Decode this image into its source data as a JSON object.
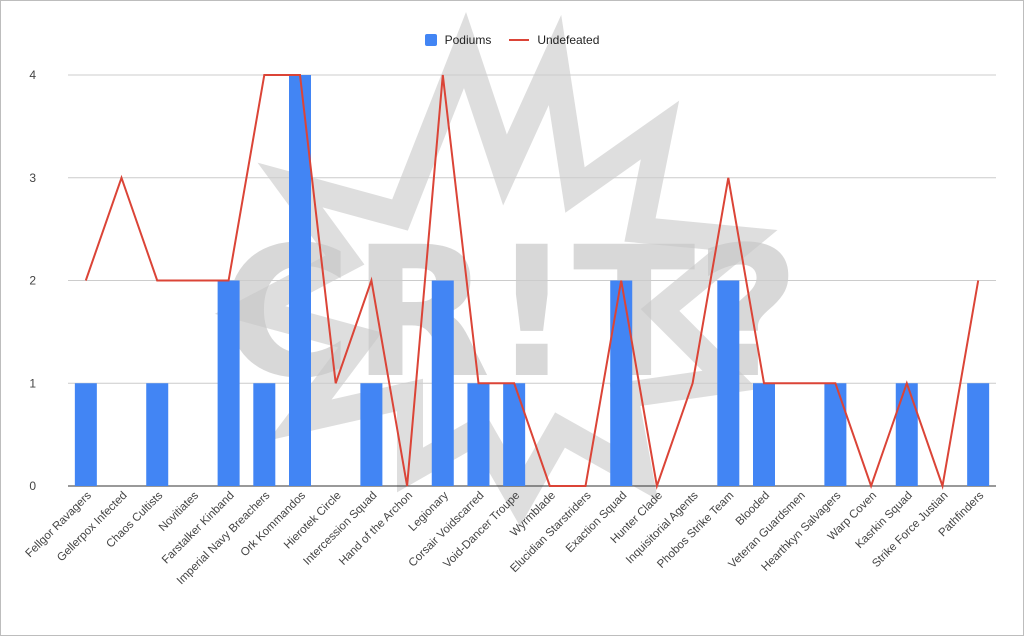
{
  "watermark_text": "CR!T?",
  "chart_data": {
    "type": "bar",
    "title": "",
    "xlabel": "",
    "ylabel": "",
    "ylim": [
      0,
      4
    ],
    "yticks": [
      "0",
      "1",
      "2",
      "3",
      "4"
    ],
    "grid": true,
    "legend_position": "top-center",
    "categories": [
      "Fellgor Ravagers",
      "Gellerpox Infected",
      "Chaos Cultists",
      "Novitiates",
      "Farstalker Kinband",
      "Imperial Navy Breachers",
      "Ork Kommandos",
      "Hierotek Circle",
      "Intercession Squad",
      "Hand of the Archon",
      "Legionary",
      "Corsair Voidscarred",
      "Void-Dancer Troupe",
      "Wyrmblade",
      "Elucidian Starstriders",
      "Exaction Squad",
      "Hunter Clade",
      "Inquisitorial Agents",
      "Phobos Strike Team",
      "Blooded",
      "Veteran Guardsmen",
      "Hearthkyn Salvagers",
      "Warp Coven",
      "Kasrkin Squad",
      "Strike Force Justian",
      "Pathfinders"
    ],
    "series": [
      {
        "name": "Podiums",
        "type": "bar",
        "color": "#4285f4",
        "values": [
          1,
          0,
          1,
          0,
          2,
          1,
          4,
          0,
          1,
          0,
          2,
          1,
          1,
          0,
          0,
          2,
          0,
          0,
          2,
          1,
          0,
          1,
          0,
          1,
          0,
          1
        ]
      },
      {
        "name": "Undefeated",
        "type": "line",
        "color": "#db4437",
        "values": [
          2,
          3,
          2,
          2,
          2,
          4,
          4,
          1,
          2,
          0,
          4,
          1,
          1,
          0,
          0,
          2,
          0,
          1,
          3,
          1,
          1,
          1,
          0,
          1,
          0,
          2
        ]
      }
    ]
  }
}
